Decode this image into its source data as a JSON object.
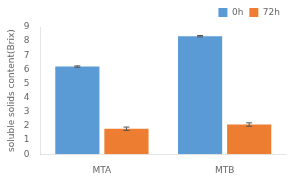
{
  "chart_data": {
    "type": "bar",
    "categories": [
      "MTA",
      "MTB"
    ],
    "series": [
      {
        "name": "0h",
        "color": "#5B9BD5",
        "values": [
          6.2,
          8.35
        ],
        "errors": [
          0.05,
          0.05
        ]
      },
      {
        "name": "72h",
        "color": "#ED7D31",
        "values": [
          1.8,
          2.1
        ],
        "errors": [
          0.12,
          0.12
        ]
      }
    ],
    "ylabel": "soluble solids content(Brix)",
    "ylim": [
      0,
      9
    ],
    "yticks": [
      0,
      1,
      2,
      3,
      4,
      5,
      6,
      7,
      8,
      9
    ],
    "legend": "upper right",
    "grid": false
  }
}
